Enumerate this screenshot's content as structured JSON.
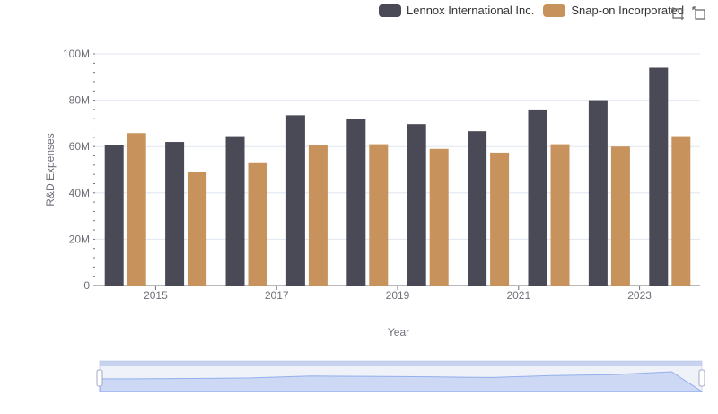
{
  "chart_data": {
    "type": "bar",
    "x": [
      2014,
      2015,
      2016,
      2017,
      2018,
      2019,
      2020,
      2021,
      2022,
      2023
    ],
    "tick_labels": [
      "2015",
      "2017",
      "2019",
      "2021",
      "2023"
    ],
    "series": [
      {
        "name": "Lennox International Inc.",
        "color": "#4a4956",
        "values": [
          60500000,
          62000000,
          64500000,
          73500000,
          72000000,
          69700000,
          66600000,
          76000000,
          80000000,
          94000000
        ]
      },
      {
        "name": "Snap-on Incorporated",
        "color": "#c8925c",
        "values": [
          65800000,
          49000000,
          53200000,
          60800000,
          61000000,
          59000000,
          57400000,
          61000000,
          60000000,
          64500000
        ]
      }
    ],
    "yticks": [
      "0",
      "20M",
      "40M",
      "60M",
      "80M",
      "100M"
    ],
    "ylim": [
      0,
      100000000
    ],
    "xlabel": "Year",
    "ylabel": "R&D Expenses",
    "legend_position": "top-right"
  },
  "toolbox": {
    "zoom_icon": "zoom-icon",
    "restore_icon": "restore-icon"
  }
}
